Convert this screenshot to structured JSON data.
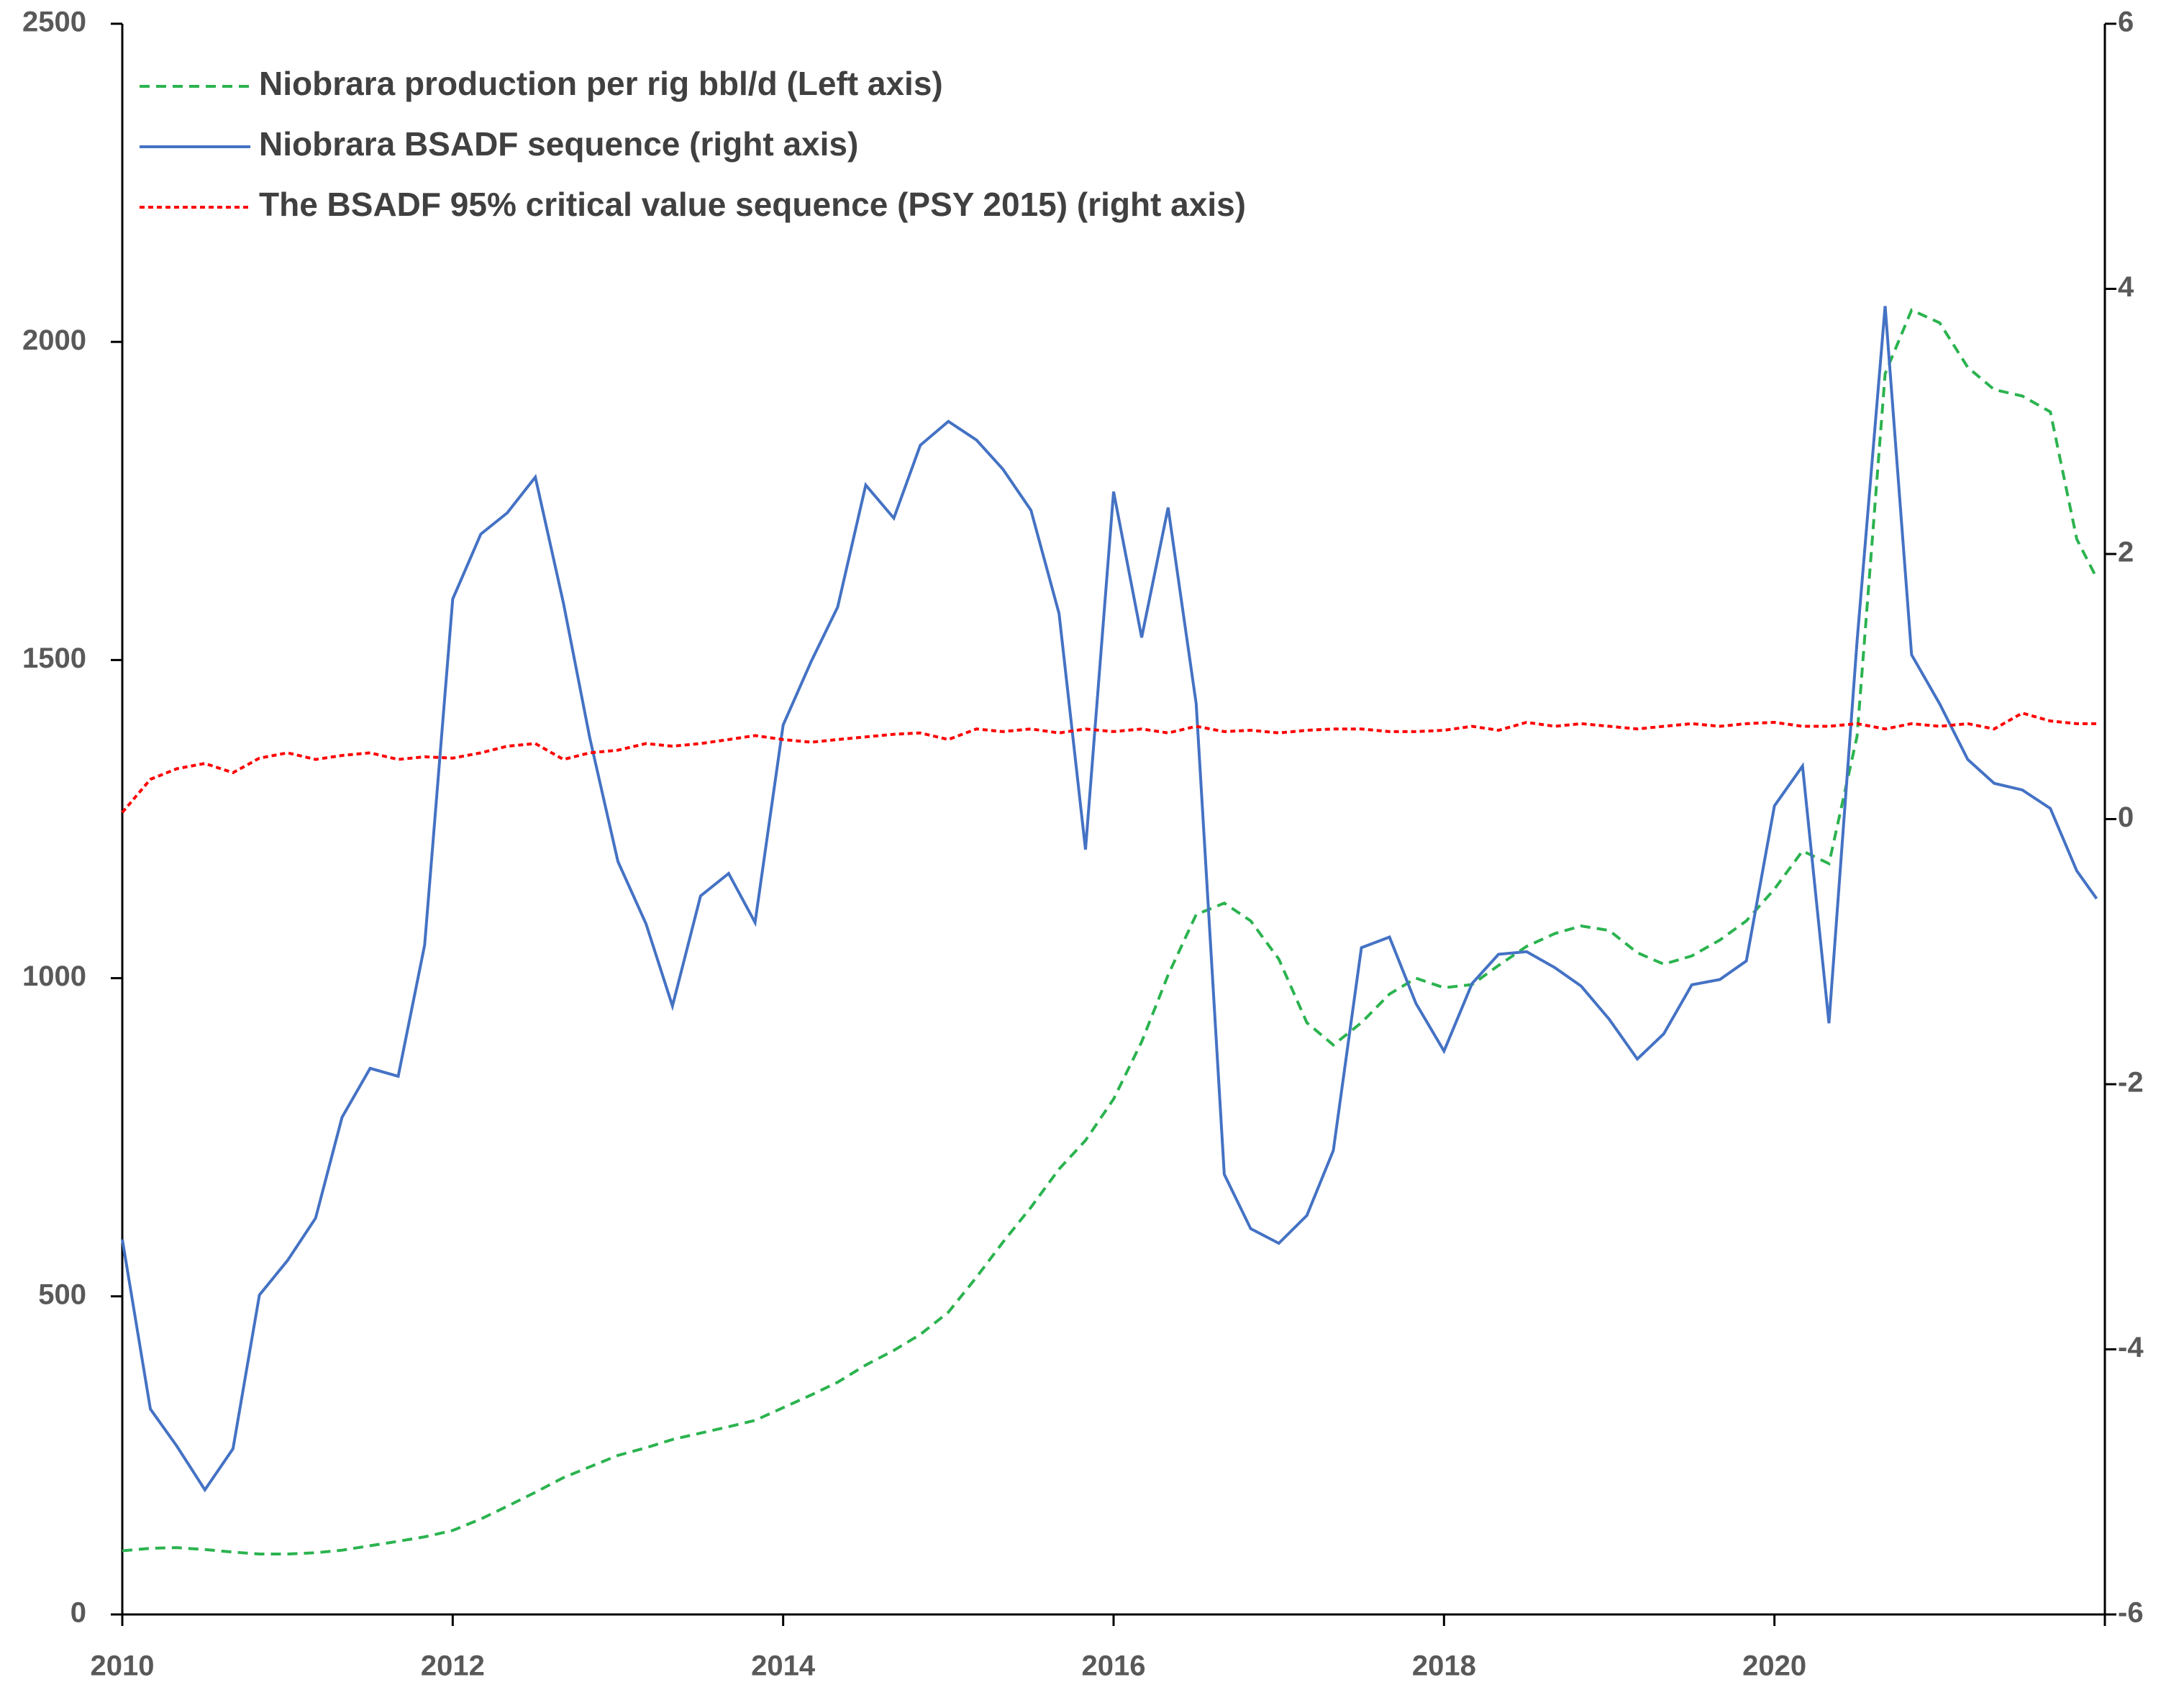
{
  "chart_data": {
    "type": "line",
    "legend": "upper left",
    "x": [
      2010.0,
      2010.17,
      2010.33,
      2010.5,
      2010.67,
      2010.83,
      2011.0,
      2011.17,
      2011.33,
      2011.5,
      2011.67,
      2011.83,
      2012.0,
      2012.17,
      2012.33,
      2012.5,
      2012.67,
      2012.83,
      2013.0,
      2013.17,
      2013.33,
      2013.5,
      2013.67,
      2013.83,
      2014.0,
      2014.17,
      2014.33,
      2014.5,
      2014.67,
      2014.83,
      2015.0,
      2015.17,
      2015.33,
      2015.5,
      2015.67,
      2015.83,
      2016.0,
      2016.17,
      2016.33,
      2016.5,
      2016.67,
      2016.83,
      2017.0,
      2017.17,
      2017.33,
      2017.5,
      2017.67,
      2017.83,
      2018.0,
      2018.17,
      2018.33,
      2018.5,
      2018.67,
      2018.83,
      2019.0,
      2019.17,
      2019.33,
      2019.5,
      2019.67,
      2019.83,
      2020.0,
      2020.17,
      2020.33,
      2020.5,
      2020.67,
      2020.83,
      2021.0,
      2021.17,
      2021.33,
      2021.5,
      2021.67,
      2021.83,
      2021.95
    ],
    "series": [
      {
        "name": "Niobrara production per rig bbl/d (Left axis)",
        "color": "#2bb34f",
        "style": "dashed",
        "values": [
          100,
          104,
          105,
          102,
          98,
          95,
          95,
          97,
          101,
          108,
          115,
          122,
          132,
          150,
          170,
          192,
          215,
          232,
          250,
          262,
          275,
          285,
          295,
          305,
          325,
          345,
          365,
          392,
          415,
          440,
          475,
          530,
          585,
          640,
          700,
          745,
          810,
          900,
          1005,
          1100,
          1118,
          1090,
          1030,
          930,
          895,
          930,
          975,
          1000,
          985,
          990,
          1020,
          1050,
          1070,
          1082,
          1075,
          1040,
          1022,
          1035,
          1060,
          1090,
          1140,
          1200,
          1180,
          1380,
          1950,
          2050,
          2030,
          1960,
          1925,
          1915,
          1890,
          1690,
          1629
        ]
      },
      {
        "name": "Niobrara BSADF sequence (right axis)",
        "color": "#4472c4",
        "style": "solid",
        "axis": "y2",
        "values": [
          -3.17,
          -4.45,
          -4.73,
          -5.06,
          -4.75,
          -3.59,
          -3.33,
          -3.01,
          -2.25,
          -1.88,
          -1.94,
          -0.95,
          1.66,
          2.15,
          2.31,
          2.58,
          1.63,
          0.61,
          -0.32,
          -0.79,
          -1.41,
          -0.58,
          -0.41,
          -0.78,
          0.71,
          1.19,
          1.6,
          2.52,
          2.27,
          2.82,
          3.0,
          2.86,
          2.64,
          2.33,
          1.55,
          -0.23,
          2.47,
          1.37,
          2.35,
          0.87,
          -2.68,
          -3.09,
          -3.2,
          -2.99,
          -2.5,
          -0.97,
          -0.89,
          -1.39,
          -1.75,
          -1.24,
          -1.02,
          -1.0,
          -1.12,
          -1.26,
          -1.51,
          -1.81,
          -1.62,
          -1.25,
          -1.21,
          -1.07,
          0.1,
          0.4,
          -1.54,
          1.34,
          3.87,
          1.24,
          0.87,
          0.45,
          0.27,
          0.22,
          0.08,
          -0.39,
          -0.6
        ]
      },
      {
        "name": "The BSADF 95% critical value sequence (PSY 2015)  (right axis)",
        "color": "#ff0000",
        "style": "dotted",
        "axis": "y2",
        "values": [
          0.05,
          0.3,
          0.38,
          0.42,
          0.35,
          0.46,
          0.5,
          0.45,
          0.48,
          0.5,
          0.45,
          0.47,
          0.46,
          0.5,
          0.55,
          0.57,
          0.45,
          0.5,
          0.52,
          0.57,
          0.55,
          0.57,
          0.6,
          0.63,
          0.6,
          0.58,
          0.6,
          0.62,
          0.64,
          0.65,
          0.6,
          0.68,
          0.66,
          0.68,
          0.65,
          0.68,
          0.66,
          0.68,
          0.65,
          0.7,
          0.66,
          0.67,
          0.65,
          0.67,
          0.68,
          0.68,
          0.66,
          0.66,
          0.67,
          0.7,
          0.67,
          0.73,
          0.7,
          0.72,
          0.7,
          0.68,
          0.7,
          0.72,
          0.7,
          0.72,
          0.73,
          0.7,
          0.7,
          0.72,
          0.68,
          0.72,
          0.7,
          0.72,
          0.68,
          0.8,
          0.74,
          0.72,
          0.72
        ]
      }
    ],
    "xlim": [
      2010,
      2022
    ],
    "xticks": [
      2010,
      2012,
      2014,
      2016,
      2018,
      2020
    ],
    "ylim": [
      0,
      2500
    ],
    "yticks": [
      0,
      500,
      1000,
      1500,
      2000,
      2500
    ],
    "y2lim": [
      -6,
      6
    ],
    "y2ticks": [
      -6,
      -4,
      -2,
      0,
      2,
      4,
      6
    ]
  }
}
